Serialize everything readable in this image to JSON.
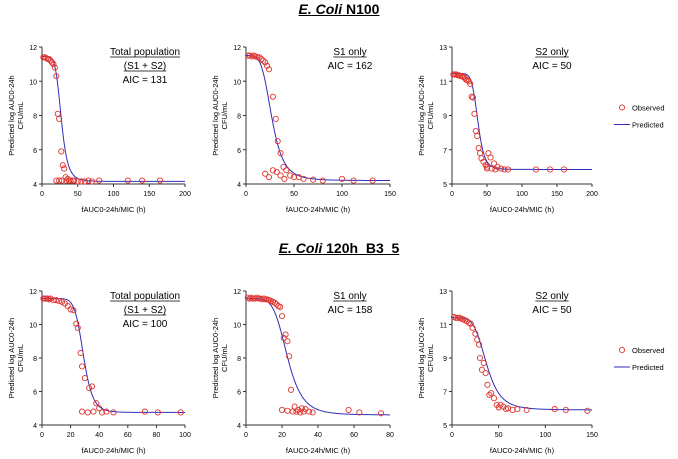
{
  "section_titles": [
    {
      "species": "E. Coli",
      "strain": " N100"
    },
    {
      "species": "E. Coli",
      "strain": " 120h_B3_5"
    }
  ],
  "colors": {
    "observed": "#e0342f",
    "predicted": "#2e2eb8",
    "axis": "#333333"
  },
  "legend": {
    "observed": "Observed",
    "predicted": "Predicted"
  },
  "chart_data": [
    {
      "type": "scatter",
      "panel": "N100 total",
      "ylabel": "Predicted log AUC0-24h CFU/mL",
      "xlabel": "fAUC0-24h/MIC (h)",
      "xlim": [
        0,
        200
      ],
      "ylim": [
        4,
        12
      ],
      "xticks": [
        0,
        50,
        100,
        150,
        200
      ],
      "yticks": [
        4,
        6,
        8,
        10,
        12
      ],
      "annotation": [
        "Total population",
        "(S1 + S2)",
        "AIC = 131"
      ],
      "underline": [
        true,
        true,
        false
      ],
      "curve": {
        "top": 11.45,
        "bottom": 4.15,
        "ec50": 27,
        "n": 6
      },
      "observed": [
        [
          2,
          11.4
        ],
        [
          4,
          11.4
        ],
        [
          6,
          11.35
        ],
        [
          8,
          11.3
        ],
        [
          10,
          11.3
        ],
        [
          12,
          11.2
        ],
        [
          14,
          11.1
        ],
        [
          16,
          11
        ],
        [
          18,
          10.8
        ],
        [
          20,
          10.3
        ],
        [
          22,
          8.1
        ],
        [
          24,
          7.8
        ],
        [
          27,
          5.9
        ],
        [
          29,
          5.1
        ],
        [
          31,
          4.9
        ],
        [
          33,
          4.4
        ],
        [
          36,
          4.3
        ],
        [
          40,
          4.2
        ],
        [
          45,
          4.2
        ],
        [
          50,
          4.15
        ],
        [
          55,
          4.15
        ],
        [
          60,
          4.15
        ],
        [
          65,
          4.2
        ],
        [
          70,
          4.15
        ],
        [
          80,
          4.2
        ],
        [
          120,
          4.2
        ],
        [
          140,
          4.2
        ],
        [
          165,
          4.2
        ],
        [
          20,
          4.2
        ],
        [
          24,
          4.2
        ],
        [
          28,
          4.2
        ],
        [
          34,
          4.2
        ],
        [
          38,
          4.2
        ],
        [
          43,
          4.2
        ]
      ]
    },
    {
      "type": "scatter",
      "panel": "N100 S1",
      "ylabel": "Predicted log AUC0-24h CFU/mL",
      "xlabel": "fAUC0-24h/MIC (h)",
      "xlim": [
        0,
        150
      ],
      "ylim": [
        4,
        12
      ],
      "xticks": [
        0,
        50,
        100,
        150
      ],
      "yticks": [
        4,
        6,
        8,
        10,
        12
      ],
      "annotation": [
        "S1 only",
        "AIC = 162"
      ],
      "underline": [
        true,
        false
      ],
      "curve": {
        "top": 11.5,
        "bottom": 4.2,
        "ec50": 27,
        "n": 4.5
      },
      "observed": [
        [
          2,
          11.5
        ],
        [
          4,
          11.5
        ],
        [
          6,
          11.45
        ],
        [
          8,
          11.5
        ],
        [
          10,
          11.45
        ],
        [
          12,
          11.4
        ],
        [
          14,
          11.4
        ],
        [
          16,
          11.3
        ],
        [
          18,
          11.2
        ],
        [
          20,
          11.1
        ],
        [
          22,
          10.9
        ],
        [
          24,
          10.7
        ],
        [
          28,
          9.1
        ],
        [
          31,
          7.8
        ],
        [
          33,
          6.5
        ],
        [
          36,
          5.8
        ],
        [
          39,
          5
        ],
        [
          42,
          4.8
        ],
        [
          46,
          4.5
        ],
        [
          50,
          4.4
        ],
        [
          55,
          4.4
        ],
        [
          60,
          4.3
        ],
        [
          70,
          4.25
        ],
        [
          80,
          4.2
        ],
        [
          100,
          4.3
        ],
        [
          112,
          4.2
        ],
        [
          132,
          4.2
        ],
        [
          20,
          4.6
        ],
        [
          24,
          4.4
        ],
        [
          28,
          4.8
        ],
        [
          32,
          4.7
        ],
        [
          36,
          4.5
        ],
        [
          40,
          4.3
        ]
      ]
    },
    {
      "type": "scatter",
      "panel": "N100 S2",
      "ylabel": "Predicted log AUC0-24h CFU/mL",
      "xlabel": "fAUC0-24h/MIC (h)",
      "xlim": [
        0,
        200
      ],
      "ylim": [
        5,
        13
      ],
      "xticks": [
        0,
        50,
        100,
        150,
        200
      ],
      "yticks": [
        5,
        7,
        9,
        11,
        13
      ],
      "annotation": [
        "S2 only",
        "AIC = 50"
      ],
      "underline": [
        true,
        false
      ],
      "curve": {
        "top": 11.45,
        "bottom": 5.85,
        "ec50": 37,
        "n": 8
      },
      "observed": [
        [
          2,
          11.4
        ],
        [
          4,
          11.4
        ],
        [
          6,
          11.4
        ],
        [
          8,
          11.35
        ],
        [
          10,
          11.35
        ],
        [
          12,
          11.3
        ],
        [
          14,
          11.3
        ],
        [
          16,
          11.25
        ],
        [
          18,
          11.2
        ],
        [
          20,
          11.1
        ],
        [
          22,
          11.05
        ],
        [
          24,
          11
        ],
        [
          26,
          10.85
        ],
        [
          28,
          10.1
        ],
        [
          30,
          10.05
        ],
        [
          32,
          9.1
        ],
        [
          34,
          8.1
        ],
        [
          36,
          7.8
        ],
        [
          38,
          7.1
        ],
        [
          40,
          6.8
        ],
        [
          42,
          6.5
        ],
        [
          45,
          6.3
        ],
        [
          48,
          6.1
        ],
        [
          50,
          6
        ],
        [
          52,
          6.8
        ],
        [
          55,
          6.55
        ],
        [
          60,
          6.2
        ],
        [
          65,
          6
        ],
        [
          70,
          5.9
        ],
        [
          75,
          5.85
        ],
        [
          80,
          5.85
        ],
        [
          120,
          5.85
        ],
        [
          140,
          5.85
        ],
        [
          160,
          5.85
        ],
        [
          50,
          5.9
        ],
        [
          57,
          5.9
        ],
        [
          62,
          5.85
        ]
      ]
    },
    {
      "type": "scatter",
      "panel": "B3_5 total",
      "ylabel": "Predicted log AUC0-24h CFU/mL",
      "xlabel": "fAUC0-24h/MIC (h)",
      "xlim": [
        0,
        100
      ],
      "ylim": [
        4,
        12
      ],
      "xticks": [
        0,
        20,
        40,
        60,
        80,
        100
      ],
      "yticks": [
        4,
        6,
        8,
        10,
        12
      ],
      "annotation": [
        "Total population",
        "(S1 + S2)",
        "AIC = 100"
      ],
      "underline": [
        true,
        true,
        false
      ],
      "curve": {
        "top": 11.55,
        "bottom": 4.75,
        "ec50": 29,
        "n": 9
      },
      "observed": [
        [
          1,
          11.55
        ],
        [
          2,
          11.55
        ],
        [
          3,
          11.55
        ],
        [
          4,
          11.55
        ],
        [
          5,
          11.5
        ],
        [
          6,
          11.55
        ],
        [
          8,
          11.45
        ],
        [
          10,
          11.45
        ],
        [
          12,
          11.4
        ],
        [
          14,
          11.35
        ],
        [
          16,
          11.25
        ],
        [
          18,
          11.1
        ],
        [
          20,
          10.9
        ],
        [
          22,
          10.85
        ],
        [
          24,
          10.05
        ],
        [
          25,
          9.8
        ],
        [
          27,
          8.3
        ],
        [
          28,
          7.5
        ],
        [
          30,
          6.8
        ],
        [
          33,
          6.2
        ],
        [
          35,
          6.3
        ],
        [
          38,
          5.3
        ],
        [
          40,
          5
        ],
        [
          45,
          4.8
        ],
        [
          50,
          4.75
        ],
        [
          72,
          4.8
        ],
        [
          81,
          4.75
        ],
        [
          97,
          4.75
        ],
        [
          28,
          4.8
        ],
        [
          32,
          4.75
        ],
        [
          36,
          4.8
        ],
        [
          42,
          4.75
        ]
      ]
    },
    {
      "type": "scatter",
      "panel": "B3_5 S1",
      "ylabel": "Predicted log AUC0-24h CFU/mL",
      "xlabel": "fAUC0-24h/MIC (h)",
      "xlim": [
        0,
        80
      ],
      "ylim": [
        4,
        12
      ],
      "xticks": [
        0,
        20,
        40,
        60,
        80
      ],
      "yticks": [
        4,
        6,
        8,
        10,
        12
      ],
      "annotation": [
        "S1 only",
        "AIC = 158"
      ],
      "underline": [
        true,
        false
      ],
      "curve": {
        "top": 11.55,
        "bottom": 4.6,
        "ec50": 23,
        "n": 5.5
      },
      "observed": [
        [
          1,
          11.6
        ],
        [
          2,
          11.55
        ],
        [
          3,
          11.6
        ],
        [
          4,
          11.55
        ],
        [
          5,
          11.55
        ],
        [
          6,
          11.6
        ],
        [
          7,
          11.55
        ],
        [
          8,
          11.55
        ],
        [
          9,
          11.5
        ],
        [
          10,
          11.55
        ],
        [
          11,
          11.5
        ],
        [
          12,
          11.5
        ],
        [
          13,
          11.45
        ],
        [
          14,
          11.4
        ],
        [
          15,
          11.35
        ],
        [
          16,
          11.3
        ],
        [
          17,
          11.2
        ],
        [
          18,
          11.1
        ],
        [
          19,
          11.05
        ],
        [
          20,
          10.5
        ],
        [
          21,
          9.2
        ],
        [
          22,
          9.4
        ],
        [
          23,
          9
        ],
        [
          24,
          8.1
        ],
        [
          25,
          6.1
        ],
        [
          27,
          5.1
        ],
        [
          29,
          4.9
        ],
        [
          31,
          5
        ],
        [
          33,
          4.95
        ],
        [
          35,
          4.8
        ],
        [
          20,
          4.9
        ],
        [
          23,
          4.85
        ],
        [
          26,
          4.8
        ],
        [
          28,
          4.8
        ],
        [
          30,
          4.75
        ],
        [
          32,
          4.8
        ],
        [
          37,
          4.75
        ],
        [
          57,
          4.9
        ],
        [
          63,
          4.75
        ],
        [
          75,
          4.7
        ]
      ]
    },
    {
      "type": "scatter",
      "panel": "B3_5 S2",
      "ylabel": "Predicted log AUC0-24h CFU/mL",
      "xlabel": "fAUC0-24h/MIC (h)",
      "xlim": [
        0,
        150
      ],
      "ylim": [
        5,
        13
      ],
      "xticks": [
        0,
        50,
        100,
        150
      ],
      "yticks": [
        5,
        7,
        9,
        11,
        13
      ],
      "annotation": [
        "S2 only",
        "AIC = 50"
      ],
      "underline": [
        true,
        false
      ],
      "curve": {
        "top": 11.4,
        "bottom": 5.9,
        "ec50": 37,
        "n": 5
      },
      "observed": [
        [
          2,
          11.45
        ],
        [
          4,
          11.4
        ],
        [
          6,
          11.4
        ],
        [
          8,
          11.4
        ],
        [
          10,
          11.35
        ],
        [
          12,
          11.3
        ],
        [
          14,
          11.25
        ],
        [
          16,
          11.2
        ],
        [
          18,
          11.1
        ],
        [
          20,
          11.05
        ],
        [
          22,
          10.8
        ],
        [
          25,
          10.45
        ],
        [
          27,
          10.1
        ],
        [
          29,
          9.8
        ],
        [
          30,
          9
        ],
        [
          32,
          8.3
        ],
        [
          34,
          8.7
        ],
        [
          36,
          8.1
        ],
        [
          38,
          7.4
        ],
        [
          40,
          6.8
        ],
        [
          42,
          6.9
        ],
        [
          45,
          6.6
        ],
        [
          48,
          6.2
        ],
        [
          52,
          6.2
        ],
        [
          55,
          6.1
        ],
        [
          60,
          6
        ],
        [
          65,
          5.9
        ],
        [
          70,
          5.95
        ],
        [
          80,
          5.9
        ],
        [
          110,
          5.95
        ],
        [
          122,
          5.9
        ],
        [
          145,
          5.85
        ],
        [
          50,
          6.05
        ],
        [
          58,
          5.95
        ]
      ]
    }
  ]
}
